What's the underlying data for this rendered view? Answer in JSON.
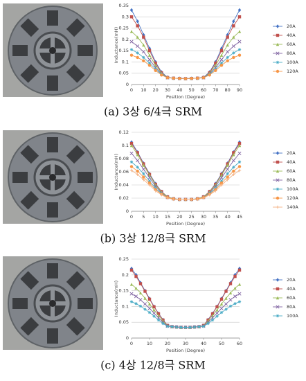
{
  "chart_data": [
    {
      "type": "line",
      "caption": "(a) 3상 6/4극 SRM",
      "xlabel": "Position (Degree)",
      "ylabel": "Inductance(mH)",
      "x": [
        0,
        5,
        10,
        15,
        20,
        25,
        30,
        35,
        40,
        45,
        50,
        55,
        60,
        65,
        70,
        75,
        80,
        85,
        90
      ],
      "xlim": [
        0,
        90
      ],
      "xticks": [
        0,
        10,
        20,
        30,
        40,
        50,
        60,
        70,
        80,
        90
      ],
      "ylim": [
        0,
        0.35
      ],
      "yticks": [
        0,
        0.05,
        0.1,
        0.15,
        0.2,
        0.25,
        0.3,
        0.35
      ],
      "grid": true,
      "legend": "right",
      "series": [
        {
          "name": "20A",
          "color": "#4472c4",
          "values": [
            0.33,
            0.28,
            0.22,
            0.16,
            0.1,
            0.055,
            0.032,
            0.028,
            0.027,
            0.026,
            0.027,
            0.028,
            0.032,
            0.055,
            0.1,
            0.16,
            0.22,
            0.28,
            0.33
          ]
        },
        {
          "name": "40A",
          "color": "#c0504d",
          "values": [
            0.3,
            0.26,
            0.21,
            0.15,
            0.095,
            0.052,
            0.031,
            0.028,
            0.027,
            0.026,
            0.027,
            0.028,
            0.031,
            0.052,
            0.095,
            0.15,
            0.21,
            0.26,
            0.3
          ]
        },
        {
          "name": "60A",
          "color": "#9bbb59",
          "values": [
            0.235,
            0.21,
            0.175,
            0.13,
            0.085,
            0.05,
            0.031,
            0.028,
            0.027,
            0.026,
            0.027,
            0.028,
            0.031,
            0.05,
            0.085,
            0.13,
            0.175,
            0.21,
            0.235
          ]
        },
        {
          "name": "80A",
          "color": "#8064a2",
          "values": [
            0.19,
            0.17,
            0.145,
            0.11,
            0.075,
            0.047,
            0.03,
            0.028,
            0.027,
            0.026,
            0.027,
            0.028,
            0.03,
            0.047,
            0.075,
            0.11,
            0.145,
            0.17,
            0.19
          ]
        },
        {
          "name": "100A",
          "color": "#4bacc6",
          "values": [
            0.155,
            0.14,
            0.12,
            0.095,
            0.068,
            0.045,
            0.03,
            0.028,
            0.027,
            0.026,
            0.027,
            0.028,
            0.03,
            0.045,
            0.068,
            0.095,
            0.12,
            0.14,
            0.155
          ]
        },
        {
          "name": "120A",
          "color": "#f79646",
          "values": [
            0.13,
            0.12,
            0.105,
            0.085,
            0.062,
            0.042,
            0.03,
            0.028,
            0.027,
            0.026,
            0.027,
            0.028,
            0.03,
            0.042,
            0.062,
            0.085,
            0.105,
            0.12,
            0.13
          ]
        }
      ]
    },
    {
      "type": "line",
      "caption": "(b) 3상 12/8극 SRM",
      "xlabel": "Position (Degree)",
      "ylabel": "Inductance(mH)",
      "x": [
        0,
        2.5,
        5,
        7.5,
        10,
        12.5,
        15,
        17.5,
        20,
        22.5,
        25,
        27.5,
        30,
        32.5,
        35,
        37.5,
        40,
        42.5,
        45
      ],
      "xlim": [
        0,
        45
      ],
      "xticks": [
        0,
        5,
        10,
        15,
        20,
        25,
        30,
        35,
        40,
        45
      ],
      "ylim": [
        0,
        0.12
      ],
      "yticks": [
        0,
        0.02,
        0.04,
        0.06,
        0.08,
        0.1,
        0.12
      ],
      "grid": true,
      "legend": "right",
      "series": [
        {
          "name": "20A",
          "color": "#4472c4",
          "values": [
            0.105,
            0.09,
            0.073,
            0.057,
            0.042,
            0.03,
            0.022,
            0.019,
            0.018,
            0.018,
            0.018,
            0.019,
            0.022,
            0.03,
            0.042,
            0.057,
            0.073,
            0.09,
            0.105
          ]
        },
        {
          "name": "40A",
          "color": "#c0504d",
          "values": [
            0.103,
            0.089,
            0.072,
            0.056,
            0.041,
            0.03,
            0.022,
            0.019,
            0.018,
            0.018,
            0.018,
            0.019,
            0.022,
            0.03,
            0.041,
            0.056,
            0.072,
            0.089,
            0.103
          ]
        },
        {
          "name": "60A",
          "color": "#9bbb59",
          "values": [
            0.1,
            0.086,
            0.07,
            0.055,
            0.04,
            0.029,
            0.022,
            0.019,
            0.018,
            0.018,
            0.018,
            0.019,
            0.022,
            0.029,
            0.04,
            0.055,
            0.07,
            0.086,
            0.1
          ]
        },
        {
          "name": "80A",
          "color": "#8064a2",
          "values": [
            0.088,
            0.077,
            0.064,
            0.051,
            0.038,
            0.028,
            0.021,
            0.019,
            0.018,
            0.018,
            0.018,
            0.019,
            0.021,
            0.028,
            0.038,
            0.051,
            0.064,
            0.077,
            0.088
          ]
        },
        {
          "name": "100A",
          "color": "#4bacc6",
          "values": [
            0.075,
            0.067,
            0.057,
            0.046,
            0.035,
            0.027,
            0.021,
            0.019,
            0.018,
            0.018,
            0.018,
            0.019,
            0.021,
            0.027,
            0.035,
            0.046,
            0.057,
            0.067,
            0.075
          ]
        },
        {
          "name": "120A",
          "color": "#f79646",
          "values": [
            0.068,
            0.061,
            0.052,
            0.043,
            0.033,
            0.026,
            0.021,
            0.019,
            0.018,
            0.018,
            0.018,
            0.019,
            0.021,
            0.026,
            0.033,
            0.043,
            0.052,
            0.061,
            0.068
          ]
        },
        {
          "name": "140A",
          "color": "#f4b183",
          "values": [
            0.062,
            0.056,
            0.048,
            0.04,
            0.031,
            0.025,
            0.02,
            0.018,
            0.018,
            0.018,
            0.018,
            0.018,
            0.02,
            0.025,
            0.031,
            0.04,
            0.048,
            0.056,
            0.062
          ]
        }
      ]
    },
    {
      "type": "line",
      "caption": "(c) 4상 12/8극 SRM",
      "xlabel": "Position (Degree)",
      "ylabel": "Inductance(mH)",
      "x": [
        0,
        2.5,
        5,
        7.5,
        10,
        12.5,
        15,
        17.5,
        20,
        22.5,
        25,
        27.5,
        30,
        32.5,
        35,
        37.5,
        40,
        42.5,
        45,
        47.5,
        50,
        52.5,
        55,
        57.5,
        60
      ],
      "xlim": [
        0,
        60
      ],
      "xticks": [
        0,
        10,
        20,
        30,
        40,
        50,
        60
      ],
      "ylim": [
        0,
        0.25
      ],
      "yticks": [
        0,
        0.05,
        0.1,
        0.15,
        0.2,
        0.25
      ],
      "grid": true,
      "legend": "right",
      "series": [
        {
          "name": "20A",
          "color": "#4472c4",
          "values": [
            0.22,
            0.2,
            0.175,
            0.15,
            0.125,
            0.1,
            0.078,
            0.058,
            0.04,
            0.036,
            0.035,
            0.034,
            0.034,
            0.034,
            0.035,
            0.036,
            0.04,
            0.058,
            0.078,
            0.1,
            0.125,
            0.15,
            0.175,
            0.2,
            0.22
          ]
        },
        {
          "name": "40A",
          "color": "#c0504d",
          "values": [
            0.215,
            0.195,
            0.172,
            0.148,
            0.123,
            0.099,
            0.077,
            0.057,
            0.04,
            0.036,
            0.035,
            0.034,
            0.034,
            0.034,
            0.035,
            0.036,
            0.04,
            0.057,
            0.077,
            0.099,
            0.123,
            0.148,
            0.172,
            0.195,
            0.215
          ]
        },
        {
          "name": "60A",
          "color": "#9bbb59",
          "values": [
            0.17,
            0.158,
            0.143,
            0.126,
            0.108,
            0.089,
            0.071,
            0.054,
            0.039,
            0.036,
            0.035,
            0.034,
            0.034,
            0.034,
            0.035,
            0.036,
            0.039,
            0.054,
            0.071,
            0.089,
            0.108,
            0.126,
            0.143,
            0.158,
            0.17
          ]
        },
        {
          "name": "80A",
          "color": "#8064a2",
          "values": [
            0.14,
            0.132,
            0.121,
            0.108,
            0.094,
            0.079,
            0.064,
            0.05,
            0.038,
            0.036,
            0.035,
            0.034,
            0.034,
            0.034,
            0.035,
            0.036,
            0.038,
            0.05,
            0.064,
            0.079,
            0.094,
            0.108,
            0.121,
            0.132,
            0.14
          ]
        },
        {
          "name": "100A",
          "color": "#4bacc6",
          "values": [
            0.115,
            0.109,
            0.101,
            0.091,
            0.081,
            0.069,
            0.057,
            0.046,
            0.037,
            0.036,
            0.035,
            0.034,
            0.034,
            0.034,
            0.035,
            0.036,
            0.037,
            0.046,
            0.057,
            0.069,
            0.081,
            0.091,
            0.101,
            0.109,
            0.115
          ]
        }
      ]
    }
  ]
}
